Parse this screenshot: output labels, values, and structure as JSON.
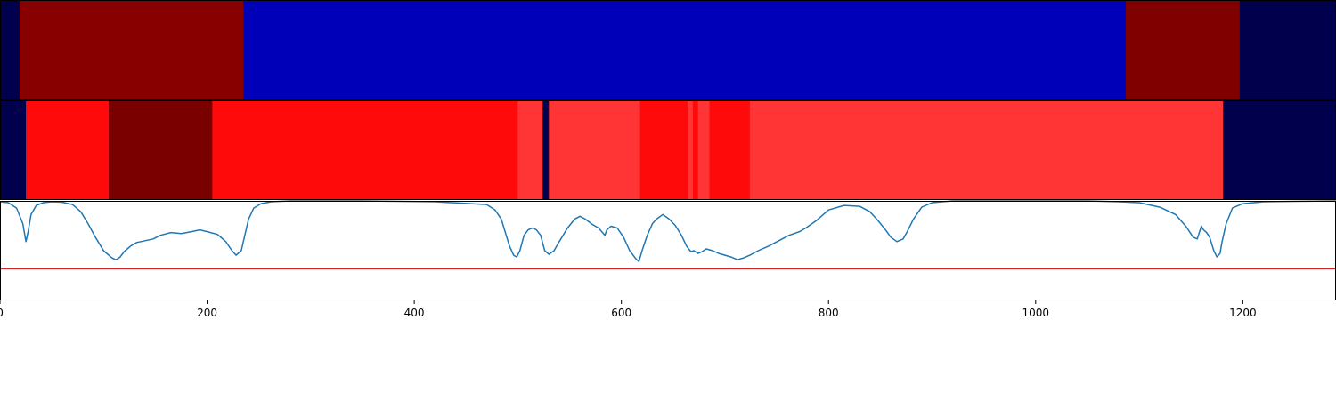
{
  "chart_data": [
    {
      "type": "heatmap",
      "xlim": [
        0,
        1290
      ],
      "segments": [
        {
          "x0": 0,
          "x1": 19,
          "color": "#00004c"
        },
        {
          "x0": 19,
          "x1": 235,
          "color": "#880000"
        },
        {
          "x0": 235,
          "x1": 1087,
          "color": "#0000b8"
        },
        {
          "x0": 1087,
          "x1": 1197,
          "color": "#800000"
        },
        {
          "x0": 1197,
          "x1": 1290,
          "color": "#00004c"
        }
      ]
    },
    {
      "type": "heatmap",
      "xlim": [
        0,
        1290
      ],
      "segments": [
        {
          "x0": 0,
          "x1": 25,
          "color": "#00004c"
        },
        {
          "x0": 25,
          "x1": 105,
          "color": "#ff0a0a"
        },
        {
          "x0": 105,
          "x1": 205,
          "color": "#7a0000"
        },
        {
          "x0": 205,
          "x1": 500,
          "color": "#ff0a0a"
        },
        {
          "x0": 500,
          "x1": 524,
          "color": "#ff3535"
        },
        {
          "x0": 524,
          "x1": 530,
          "color": "#00004c"
        },
        {
          "x0": 530,
          "x1": 618,
          "color": "#ff3535"
        },
        {
          "x0": 618,
          "x1": 664,
          "color": "#ff0a0a"
        },
        {
          "x0": 664,
          "x1": 669,
          "color": "#ff3535"
        },
        {
          "x0": 669,
          "x1": 674,
          "color": "#ff0a0a"
        },
        {
          "x0": 674,
          "x1": 685,
          "color": "#ff3535"
        },
        {
          "x0": 685,
          "x1": 724,
          "color": "#ff0a0a"
        },
        {
          "x0": 724,
          "x1": 1181,
          "color": "#ff3535"
        },
        {
          "x0": 1181,
          "x1": 1290,
          "color": "#00004c"
        }
      ]
    },
    {
      "type": "line",
      "xlim": [
        0,
        1290
      ],
      "ylim": [
        -0.1,
        1.0
      ],
      "xticks": [
        0,
        200,
        400,
        600,
        800,
        1000,
        1200
      ],
      "xtick_labels": [
        "0",
        "200",
        "400",
        "600",
        "800",
        "1000",
        "1200"
      ],
      "threshold": {
        "value": 0.25,
        "color": "#d62728"
      },
      "series": [
        {
          "color": "#1f77b4",
          "x": [
            0,
            8,
            16,
            22,
            25,
            27,
            30,
            35,
            42,
            50,
            60,
            70,
            78,
            85,
            92,
            100,
            108,
            112,
            116,
            120,
            126,
            132,
            140,
            148,
            155,
            165,
            175,
            185,
            193,
            200,
            210,
            218,
            224,
            228,
            233,
            236,
            240,
            245,
            252,
            262,
            280,
            350,
            420,
            470,
            478,
            484,
            488,
            492,
            496,
            499,
            502,
            506,
            510,
            514,
            518,
            522,
            526,
            530,
            535,
            540,
            548,
            555,
            560,
            565,
            572,
            578,
            584,
            586,
            590,
            596,
            602,
            608,
            614,
            617,
            620,
            625,
            630,
            634,
            640,
            646,
            652,
            658,
            663,
            667,
            670,
            674,
            678,
            682,
            688,
            694,
            700,
            706,
            712,
            718,
            724,
            732,
            742,
            752,
            762,
            772,
            778,
            788,
            800,
            815,
            830,
            840,
            848,
            855,
            860,
            866,
            872,
            876,
            882,
            890,
            900,
            920,
            960,
            1000,
            1050,
            1080,
            1100,
            1120,
            1135,
            1145,
            1152,
            1156,
            1160,
            1162,
            1165,
            1168,
            1172,
            1175,
            1178,
            1180,
            1184,
            1190,
            1200,
            1220,
            1250,
            1290
          ],
          "y": [
            0.99,
            0.98,
            0.92,
            0.75,
            0.55,
            0.65,
            0.85,
            0.95,
            0.98,
            0.99,
            0.985,
            0.96,
            0.88,
            0.75,
            0.6,
            0.45,
            0.37,
            0.35,
            0.38,
            0.44,
            0.5,
            0.54,
            0.56,
            0.58,
            0.62,
            0.65,
            0.64,
            0.66,
            0.68,
            0.66,
            0.63,
            0.55,
            0.45,
            0.4,
            0.45,
            0.6,
            0.8,
            0.92,
            0.97,
            0.99,
            1.0,
            1.0,
            0.99,
            0.96,
            0.9,
            0.8,
            0.65,
            0.5,
            0.4,
            0.38,
            0.45,
            0.62,
            0.68,
            0.7,
            0.68,
            0.62,
            0.45,
            0.41,
            0.45,
            0.55,
            0.7,
            0.8,
            0.83,
            0.8,
            0.74,
            0.7,
            0.62,
            0.68,
            0.72,
            0.7,
            0.6,
            0.45,
            0.36,
            0.33,
            0.45,
            0.62,
            0.75,
            0.8,
            0.85,
            0.8,
            0.73,
            0.62,
            0.5,
            0.44,
            0.45,
            0.42,
            0.44,
            0.47,
            0.45,
            0.42,
            0.4,
            0.38,
            0.35,
            0.37,
            0.4,
            0.45,
            0.5,
            0.56,
            0.62,
            0.66,
            0.7,
            0.78,
            0.9,
            0.95,
            0.94,
            0.88,
            0.78,
            0.68,
            0.6,
            0.55,
            0.58,
            0.66,
            0.8,
            0.93,
            0.98,
            1.0,
            1.0,
            1.0,
            1.0,
            0.99,
            0.98,
            0.93,
            0.85,
            0.72,
            0.6,
            0.58,
            0.72,
            0.68,
            0.65,
            0.6,
            0.45,
            0.38,
            0.42,
            0.55,
            0.75,
            0.92,
            0.97,
            0.99,
            0.995,
            1.0
          ]
        }
      ]
    }
  ]
}
